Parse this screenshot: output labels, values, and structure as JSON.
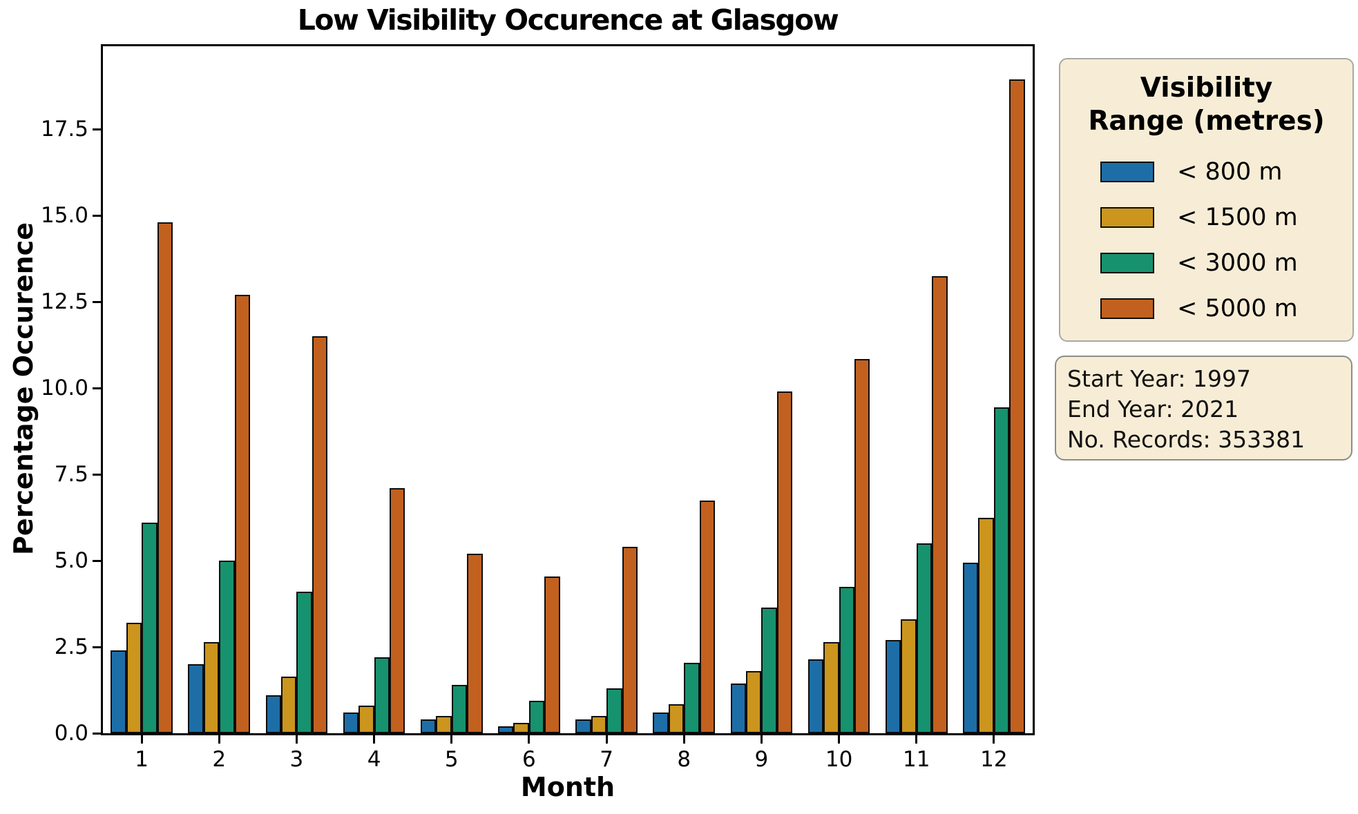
{
  "figure": {
    "title": "Low Visibility Occurence at Glasgow"
  },
  "axes": {
    "x": {
      "label": "Month",
      "ticks": [
        "1",
        "2",
        "3",
        "4",
        "5",
        "6",
        "7",
        "8",
        "9",
        "10",
        "11",
        "12"
      ]
    },
    "y": {
      "label": "Percentage Occurence",
      "ticks": [
        "0.0",
        "2.5",
        "5.0",
        "7.5",
        "10.0",
        "12.5",
        "15.0",
        "17.5"
      ]
    }
  },
  "legend": {
    "title_lines": [
      "Visibility",
      "Range (metres)"
    ],
    "items": [
      {
        "label": "< 800 m",
        "color": "#1d6ea7"
      },
      {
        "label": "< 1500 m",
        "color": "#cb951e"
      },
      {
        "label": "< 3000 m",
        "color": "#17926e"
      },
      {
        "label": "< 5000 m",
        "color": "#c2611f"
      }
    ]
  },
  "info_box": {
    "lines": [
      "Start Year: 1997",
      "End Year: 2021",
      "No. Records: 353381"
    ]
  },
  "colors": {
    "panel_background": "#f7edd6",
    "panel_border": "#a9a9a2",
    "bar_edge": "#0d0d0d",
    "text": "#000000"
  },
  "chart_data": {
    "type": "bar",
    "title": "Low Visibility Occurence at Glasgow",
    "xlabel": "Month",
    "ylabel": "Percentage Occurence",
    "categories": [
      1,
      2,
      3,
      4,
      5,
      6,
      7,
      8,
      9,
      10,
      11,
      12
    ],
    "series": [
      {
        "name": "< 800 m",
        "color": "#1d6ea7",
        "values": [
          2.4,
          2.0,
          1.1,
          0.6,
          0.4,
          0.2,
          0.4,
          0.6,
          1.45,
          2.15,
          2.7,
          4.95
        ]
      },
      {
        "name": "< 1500 m",
        "color": "#cb951e",
        "values": [
          3.2,
          2.65,
          1.65,
          0.8,
          0.5,
          0.3,
          0.5,
          0.85,
          1.8,
          2.65,
          3.3,
          6.25
        ]
      },
      {
        "name": "< 3000 m",
        "color": "#17926e",
        "values": [
          6.1,
          5.0,
          4.1,
          2.2,
          1.4,
          0.95,
          1.3,
          2.05,
          3.65,
          4.25,
          5.5,
          9.45
        ]
      },
      {
        "name": "< 5000 m",
        "color": "#c2611f",
        "values": [
          14.8,
          12.7,
          11.5,
          7.1,
          5.2,
          4.55,
          5.4,
          6.75,
          9.9,
          10.85,
          13.25,
          18.95
        ]
      }
    ],
    "ylim": [
      0,
      19.9
    ],
    "yticks": [
      0.0,
      2.5,
      5.0,
      7.5,
      10.0,
      12.5,
      15.0,
      17.5
    ],
    "grid": false,
    "legend_position": "outside-right",
    "legend_title": "Visibility Range (metres)",
    "annotations": [
      "Start Year: 1997",
      "End Year: 2021",
      "No. Records: 353381"
    ],
    "bar_group_width_fraction": 0.8
  }
}
